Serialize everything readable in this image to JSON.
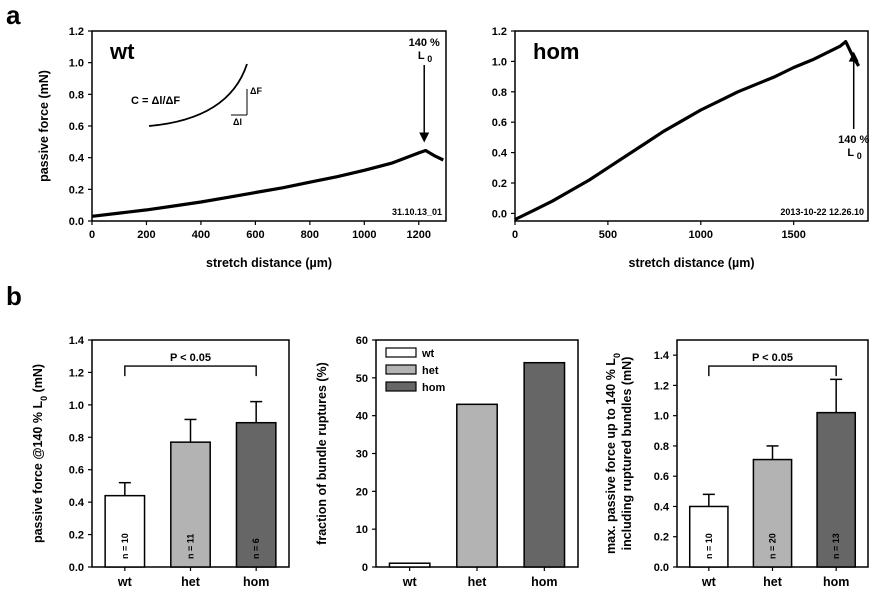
{
  "panels": {
    "a": "a",
    "b": "b"
  },
  "chart_data": [
    {
      "id": "a1",
      "type": "line",
      "title": "wt",
      "xlabel": "stretch distance (µm)",
      "ylabel": "passive force (mN)",
      "xlim": [
        0,
        1300
      ],
      "ylim": [
        0,
        1.2
      ],
      "xticks": [
        "0",
        "200",
        "400",
        "600",
        "800",
        "1000",
        "1200"
      ],
      "yticks": [
        "0.0",
        "0.2",
        "0.4",
        "0.6",
        "0.8",
        "1.0",
        "1.2"
      ],
      "series": [
        {
          "x": [
            0,
            100,
            200,
            300,
            400,
            500,
            600,
            700,
            800,
            900,
            1000,
            1100,
            1200,
            1225,
            1260,
            1290
          ],
          "y": [
            0.03,
            0.05,
            0.07,
            0.095,
            0.12,
            0.15,
            0.18,
            0.21,
            0.245,
            0.28,
            0.32,
            0.365,
            0.43,
            0.445,
            0.41,
            0.385
          ]
        }
      ],
      "annotation": {
        "text1": "140 %",
        "text2": "L",
        "sub": "0",
        "x": 1220,
        "y": 0.445,
        "dir": "down"
      },
      "stamp": "31.10.13_01",
      "inset": {
        "formula": "C = Δl/ΔF",
        "dF": "ΔF",
        "dl": "Δl"
      }
    },
    {
      "id": "a2",
      "type": "line",
      "title": "hom",
      "xlabel": "stretch distance (µm)",
      "ylabel": "",
      "xlim": [
        0,
        1900
      ],
      "ylim": [
        -0.05,
        1.2
      ],
      "xticks": [
        "0",
        "500",
        "1000",
        "1500"
      ],
      "yticks": [
        "0.0",
        "0.2",
        "0.4",
        "0.6",
        "0.8",
        "1.0",
        "1.2"
      ],
      "series": [
        {
          "x": [
            0,
            100,
            200,
            300,
            400,
            500,
            600,
            700,
            800,
            900,
            1000,
            1100,
            1200,
            1300,
            1400,
            1500,
            1600,
            1700,
            1750,
            1780,
            1820,
            1850
          ],
          "y": [
            -0.04,
            0.02,
            0.08,
            0.15,
            0.22,
            0.3,
            0.38,
            0.46,
            0.54,
            0.61,
            0.68,
            0.74,
            0.8,
            0.85,
            0.9,
            0.96,
            1.01,
            1.07,
            1.1,
            1.13,
            1.03,
            0.97
          ]
        }
      ],
      "annotation": {
        "text1": "140 %",
        "text2": "L",
        "sub": "0",
        "x": 1780,
        "y": 1.13,
        "dir": "up"
      },
      "stamp": "2013-10-22  12.26.10"
    },
    {
      "id": "b1",
      "type": "bar",
      "ylabel": "passive force @140 % L",
      "ylabel_sub": "0",
      "ylabel_end": " (mN)",
      "categories": [
        "wt",
        "het",
        "hom"
      ],
      "values": [
        0.44,
        0.77,
        0.89
      ],
      "errors": [
        0.08,
        0.14,
        0.13
      ],
      "n_labels": [
        "n = 10",
        "n = 11",
        "n =  6"
      ],
      "colors": [
        "#ffffff",
        "#b3b3b3",
        "#666666"
      ],
      "ylim": [
        0,
        1.4
      ],
      "yticks": [
        "0.0",
        "0.2",
        "0.4",
        "0.6",
        "0.8",
        "1.0",
        "1.2",
        "1.4"
      ],
      "pvalue": "P < 0.05"
    },
    {
      "id": "b2",
      "type": "bar",
      "ylabel": "fraction of bundle ruptures (%)",
      "categories": [
        "wt",
        "het",
        "hom"
      ],
      "values": [
        1,
        43,
        54
      ],
      "colors": [
        "#ffffff",
        "#b3b3b3",
        "#666666"
      ],
      "ylim": [
        0,
        60
      ],
      "yticks": [
        "0",
        "10",
        "20",
        "30",
        "40",
        "50",
        "60"
      ],
      "legend": [
        "wt",
        "het",
        "hom"
      ]
    },
    {
      "id": "b3",
      "type": "bar",
      "ylabel": "max. passive force up to 140 % L",
      "ylabel_sub": "0",
      "ylabel2": "including ruptured bundles (mN)",
      "categories": [
        "wt",
        "het",
        "hom"
      ],
      "values": [
        0.4,
        0.71,
        1.02
      ],
      "errors": [
        0.08,
        0.09,
        0.22
      ],
      "n_labels": [
        "n = 10",
        "n = 20",
        "n = 13"
      ],
      "colors": [
        "#ffffff",
        "#b3b3b3",
        "#666666"
      ],
      "ylim": [
        0,
        1.5
      ],
      "yticks": [
        "0.0",
        "0.2",
        "0.4",
        "0.6",
        "0.8",
        "1.0",
        "1.2",
        "1.4"
      ],
      "pvalue": "P < 0.05"
    }
  ]
}
